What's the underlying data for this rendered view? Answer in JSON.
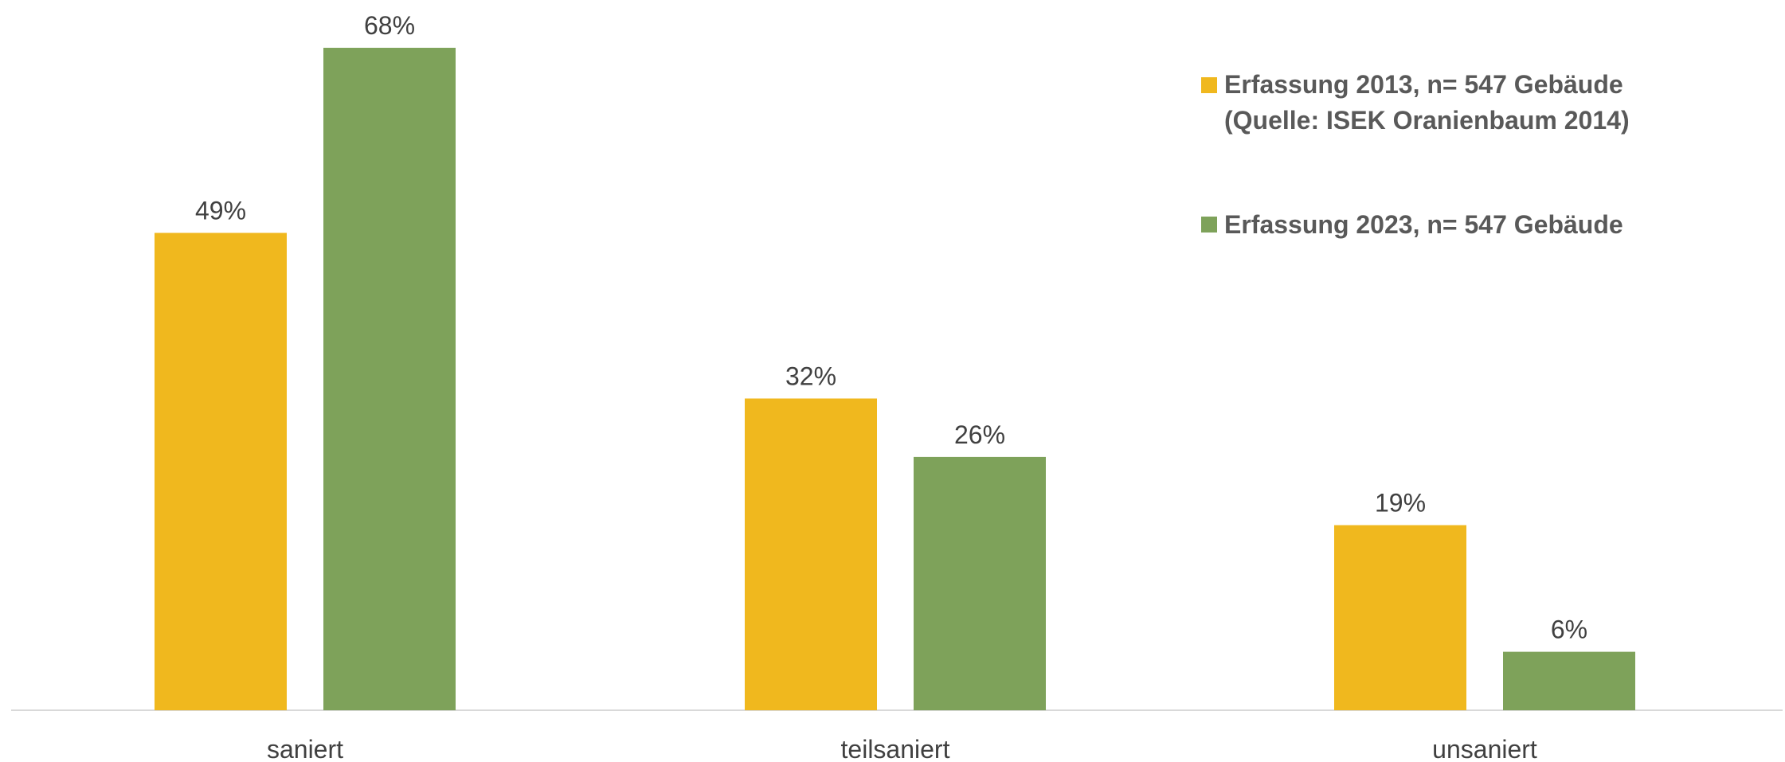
{
  "chart_data": {
    "type": "bar",
    "categories": [
      "saniert",
      "teilsaniert",
      "unsaniert"
    ],
    "series": [
      {
        "name": "Erfassung 2013, n= 547 Gebäude",
        "name_line2": "(Quelle: ISEK Oranienbaum 2014)",
        "values": [
          49,
          32,
          19
        ],
        "labels": [
          "49%",
          "32%",
          "19%"
        ],
        "color": "#F0B81E"
      },
      {
        "name": "Erfassung 2023, n= 547 Gebäude",
        "values": [
          68,
          26,
          6
        ],
        "labels": [
          "68%",
          "26%",
          "6%"
        ],
        "color": "#7EA25A"
      }
    ],
    "ylim": [
      0,
      72
    ],
    "unit": "%",
    "grid": false,
    "legend_position": "top-right"
  }
}
